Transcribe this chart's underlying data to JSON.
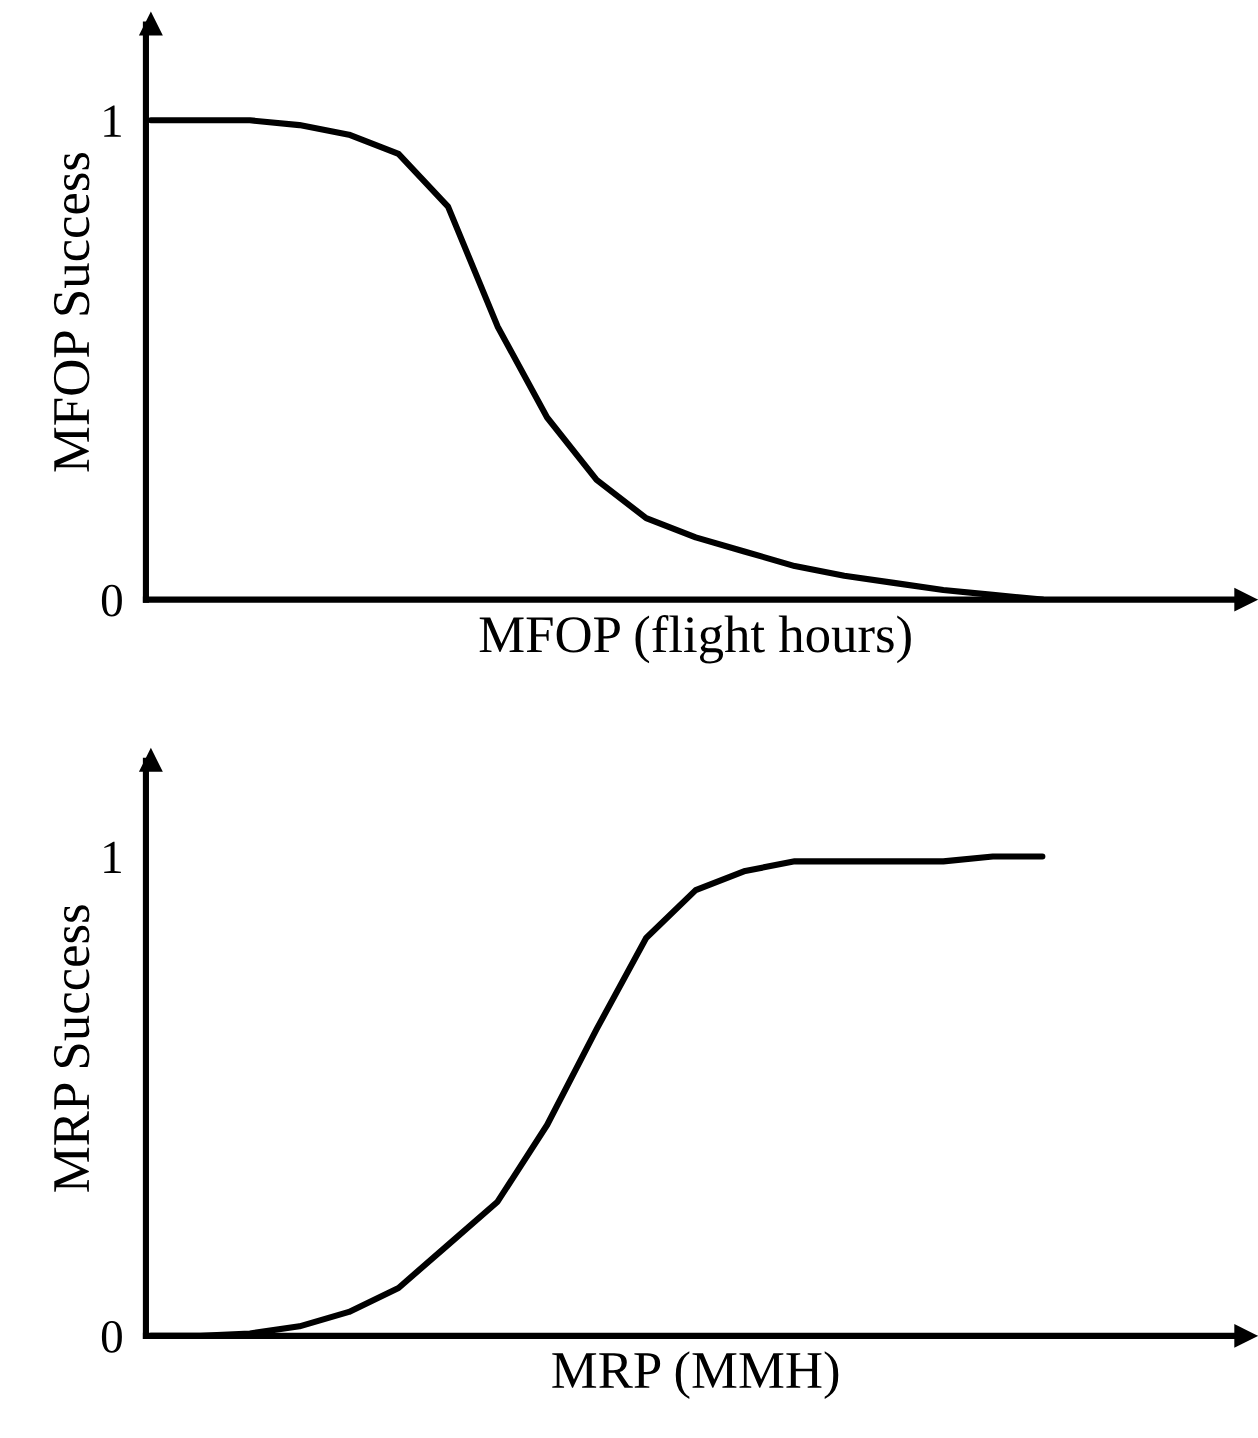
{
  "chart_data": [
    {
      "type": "line",
      "ylabel": "MFOP Success",
      "xlabel": "MFOP (flight hours)",
      "categories": [
        null,
        null,
        null,
        null,
        null,
        null,
        null,
        null,
        null,
        null,
        null,
        null,
        null,
        null,
        null,
        null,
        null,
        null,
        null,
        null,
        null,
        null,
        null
      ],
      "series": [
        {
          "color": "#000000",
          "values": [
            1.0,
            1.0,
            1.0,
            0.99,
            0.97,
            0.93,
            0.82,
            0.57,
            0.38,
            0.25,
            0.17,
            0.13,
            0.1,
            0.07,
            0.05,
            0.035,
            0.02,
            0.01,
            0.0,
            null,
            null,
            null,
            null
          ]
        }
      ],
      "ylim": [
        0,
        1.2
      ],
      "yticks": [
        0,
        1
      ]
    },
    {
      "type": "line",
      "ylabel": "MRP Success",
      "xlabel": "MRP (MMH)",
      "categories": [
        null,
        null,
        null,
        null,
        null,
        null,
        null,
        null,
        null,
        null,
        null,
        null,
        null,
        null,
        null,
        null,
        null,
        null,
        null,
        null,
        null,
        null,
        null
      ],
      "series": [
        {
          "color": "#000000",
          "values": [
            0.0,
            0.0,
            0.005,
            0.02,
            0.05,
            0.1,
            0.19,
            0.28,
            0.44,
            0.64,
            0.83,
            0.93,
            0.97,
            0.99,
            0.99,
            0.99,
            0.99,
            1.0,
            1.0,
            null,
            null,
            null,
            null
          ]
        }
      ],
      "ylim": [
        0,
        1.2
      ],
      "yticks": [
        0,
        1
      ]
    }
  ]
}
